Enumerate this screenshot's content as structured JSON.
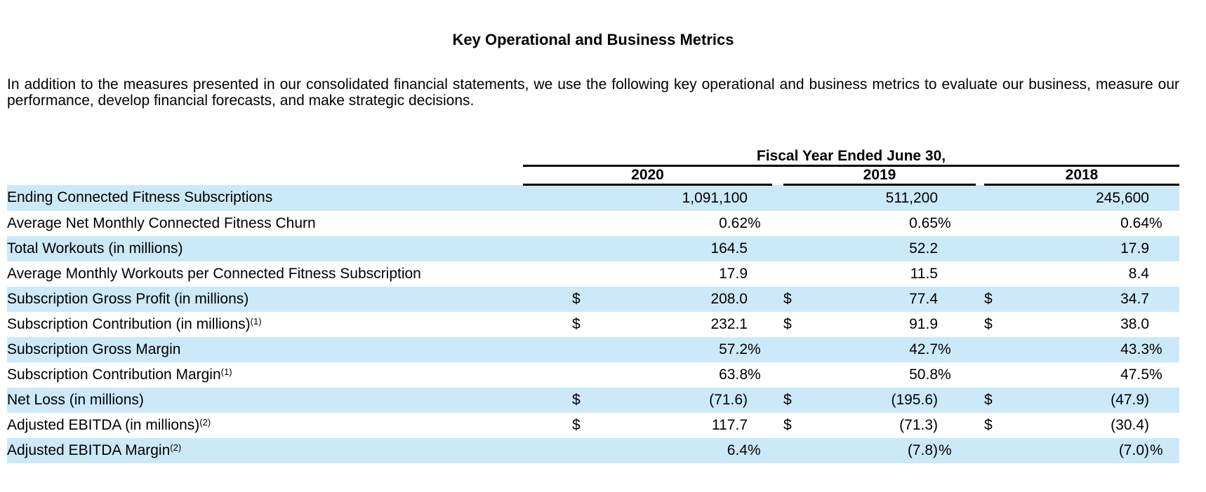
{
  "page": {
    "title": "Key Operational and Business Metrics",
    "intro": "In addition to the measures presented in our consolidated financial statements, we use the following key operational and business metrics to evaluate our business, measure our performance, develop financial forecasts, and make strategic decisions."
  },
  "colors": {
    "stripe_blue": "#cce9fa",
    "rule_black": "#000000"
  },
  "table": {
    "group_header": "Fiscal Year Ended June 30,",
    "years": [
      "2020",
      "2019",
      "2018"
    ],
    "rows": [
      {
        "label": "Ending Connected Fitness Subscriptions",
        "sup": "",
        "shaded": true,
        "cells": [
          {
            "d": "",
            "v": "1,091,100",
            "p": ""
          },
          {
            "d": "",
            "v": "511,200",
            "p": ""
          },
          {
            "d": "",
            "v": "245,600",
            "p": ""
          }
        ]
      },
      {
        "label": "Average Net Monthly Connected Fitness Churn",
        "sup": "",
        "shaded": false,
        "cells": [
          {
            "d": "",
            "v": "0.62",
            "p": "%"
          },
          {
            "d": "",
            "v": "0.65",
            "p": "%"
          },
          {
            "d": "",
            "v": "0.64",
            "p": "%"
          }
        ]
      },
      {
        "label": "Total Workouts (in millions)",
        "sup": "",
        "shaded": true,
        "cells": [
          {
            "d": "",
            "v": "164.5",
            "p": ""
          },
          {
            "d": "",
            "v": "52.2",
            "p": ""
          },
          {
            "d": "",
            "v": "17.9",
            "p": ""
          }
        ]
      },
      {
        "label": "Average Monthly Workouts per Connected Fitness Subscription",
        "sup": "",
        "shaded": false,
        "cells": [
          {
            "d": "",
            "v": "17.9",
            "p": ""
          },
          {
            "d": "",
            "v": "11.5",
            "p": ""
          },
          {
            "d": "",
            "v": "8.4",
            "p": ""
          }
        ]
      },
      {
        "label": "Subscription Gross Profit (in millions)",
        "sup": "",
        "shaded": true,
        "cells": [
          {
            "d": "$",
            "v": "208.0",
            "p": ""
          },
          {
            "d": "$",
            "v": "77.4",
            "p": ""
          },
          {
            "d": "$",
            "v": "34.7",
            "p": ""
          }
        ]
      },
      {
        "label": "Subscription Contribution (in millions)",
        "sup": "(1)",
        "shaded": false,
        "cells": [
          {
            "d": "$",
            "v": "232.1",
            "p": ""
          },
          {
            "d": "$",
            "v": "91.9",
            "p": ""
          },
          {
            "d": "$",
            "v": "38.0",
            "p": ""
          }
        ]
      },
      {
        "label": "Subscription Gross Margin",
        "sup": "",
        "shaded": true,
        "cells": [
          {
            "d": "",
            "v": "57.2",
            "p": "%"
          },
          {
            "d": "",
            "v": "42.7",
            "p": "%"
          },
          {
            "d": "",
            "v": "43.3",
            "p": "%"
          }
        ]
      },
      {
        "label": "Subscription Contribution Margin",
        "sup": "(1)",
        "shaded": false,
        "cells": [
          {
            "d": "",
            "v": "63.8",
            "p": "%"
          },
          {
            "d": "",
            "v": "50.8",
            "p": "%"
          },
          {
            "d": "",
            "v": "47.5",
            "p": "%"
          }
        ]
      },
      {
        "label": "Net Loss (in millions)",
        "sup": "",
        "shaded": true,
        "cells": [
          {
            "d": "$",
            "v": "(71.6)",
            "p": ""
          },
          {
            "d": "$",
            "v": "(195.6)",
            "p": ""
          },
          {
            "d": "$",
            "v": "(47.9)",
            "p": ""
          }
        ]
      },
      {
        "label": "Adjusted EBITDA (in millions)",
        "sup": "(2)",
        "shaded": false,
        "cells": [
          {
            "d": "$",
            "v": "117.7",
            "p": ""
          },
          {
            "d": "$",
            "v": "(71.3)",
            "p": ""
          },
          {
            "d": "$",
            "v": "(30.4)",
            "p": ""
          }
        ]
      },
      {
        "label": "Adjusted EBITDA Margin",
        "sup": "(2)",
        "shaded": true,
        "cells": [
          {
            "d": "",
            "v": "6.4",
            "p": "%"
          },
          {
            "d": "",
            "v": "(7.8)",
            "p": "%"
          },
          {
            "d": "",
            "v": "(7.0)",
            "p": "%"
          }
        ]
      }
    ]
  }
}
